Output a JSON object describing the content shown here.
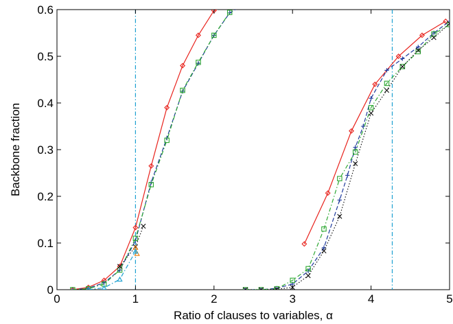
{
  "chart_data": {
    "type": "line",
    "title": "",
    "xlabel": "Ratio of clauses to variables, α",
    "ylabel": "Backbone fraction",
    "xlim": [
      0,
      5
    ],
    "ylim": [
      0,
      0.6
    ],
    "xticks": [
      0,
      1,
      2,
      3,
      4,
      5
    ],
    "yticks": [
      0,
      0.1,
      0.2,
      0.3,
      0.4,
      0.5,
      0.6
    ],
    "xtick_labels": [
      "0",
      "1",
      "2",
      "3",
      "4",
      "5"
    ],
    "ytick_labels": [
      "0",
      "0.1",
      "0.2",
      "0.3",
      "0.4",
      "0.5",
      "0.6"
    ],
    "grid": false,
    "vlines": [
      {
        "x": 1.0,
        "color": "#1a9fd0",
        "style": "dashdot"
      },
      {
        "x": 4.27,
        "color": "#1a9fd0",
        "style": "dashdot"
      }
    ],
    "series": [
      {
        "color": "#e8221c",
        "style": "solid",
        "marker": "diamond",
        "x": [
          0.2,
          0.4,
          0.6,
          0.8,
          1.0,
          1.2,
          1.4,
          1.6,
          1.8,
          2.0,
          2.2,
          2.4
        ],
        "y": [
          0.0,
          0.005,
          0.02,
          0.05,
          0.133,
          0.265,
          0.39,
          0.48,
          0.545,
          0.598,
          0.61,
          0.615
        ]
      },
      {
        "color": "#1f3a9c",
        "style": "dashed",
        "marker": "plus",
        "x": [
          0.2,
          0.4,
          0.6,
          0.8,
          1.0,
          1.2,
          1.4,
          1.6,
          1.8,
          2.0,
          2.2,
          2.4
        ],
        "y": [
          0.0,
          0.003,
          0.015,
          0.042,
          0.105,
          0.23,
          0.325,
          0.425,
          0.485,
          0.545,
          0.593,
          0.612
        ]
      },
      {
        "color": "#2da832",
        "style": "dashdot",
        "marker": "square",
        "x": [
          0.2,
          0.4,
          0.6,
          0.8,
          1.0,
          1.2,
          1.4,
          1.6,
          1.8,
          2.0,
          2.2
        ],
        "y": [
          0.0,
          0.002,
          0.012,
          0.042,
          0.11,
          0.225,
          0.32,
          0.427,
          0.487,
          0.545,
          0.594
        ]
      },
      {
        "color": "#111111",
        "style": "dotted",
        "marker": "x",
        "x": [
          0.8,
          1.0,
          1.1
        ],
        "y": [
          0.05,
          0.092,
          0.136
        ]
      },
      {
        "color": "#f07f0c",
        "style": "dashdot",
        "marker": "triangle",
        "x": [
          1.0,
          1.02
        ],
        "y": [
          0.09,
          0.077
        ]
      },
      {
        "color": "#1a9fd0",
        "style": "dashdot",
        "marker": "triangle",
        "x": [
          0.4,
          0.6,
          0.8,
          1.0
        ],
        "y": [
          0.0,
          0.004,
          0.022,
          0.082
        ]
      },
      {
        "color": "#e8221c",
        "style": "solid",
        "marker": "diamond",
        "x": [
          3.15,
          3.45,
          3.75,
          4.05,
          4.35,
          4.65,
          4.95
        ],
        "y": [
          0.098,
          0.207,
          0.34,
          0.44,
          0.5,
          0.545,
          0.575
        ]
      },
      {
        "color": "#1f3a9c",
        "style": "dashed",
        "marker": "plus",
        "x": [
          2.4,
          2.6,
          2.8,
          3.0,
          3.2,
          3.4,
          3.6,
          3.7,
          3.8,
          3.9,
          4.0,
          4.2,
          4.4,
          4.6,
          4.8,
          5.0
        ],
        "y": [
          0.0,
          0.0,
          0.003,
          0.012,
          0.04,
          0.09,
          0.192,
          0.245,
          0.305,
          0.35,
          0.41,
          0.47,
          0.495,
          0.52,
          0.55,
          0.575
        ]
      },
      {
        "color": "#2da832",
        "style": "dashdot",
        "marker": "square",
        "x": [
          2.4,
          2.6,
          2.8,
          3.0,
          3.2,
          3.4,
          3.6,
          3.8,
          4.0,
          4.2,
          4.4,
          4.6,
          4.8,
          5.0
        ],
        "y": [
          0.0,
          0.0,
          0.002,
          0.02,
          0.045,
          0.13,
          0.238,
          0.295,
          0.39,
          0.442,
          0.478,
          0.51,
          0.548,
          0.568
        ]
      },
      {
        "color": "#111111",
        "style": "dotted",
        "marker": "x",
        "x": [
          2.4,
          2.6,
          2.8,
          3.0,
          3.2,
          3.4,
          3.6,
          3.8,
          4.0,
          4.2,
          4.4,
          4.6,
          4.8,
          5.0
        ],
        "y": [
          0.0,
          0.0,
          0.001,
          0.005,
          0.03,
          0.083,
          0.157,
          0.27,
          0.378,
          0.427,
          0.478,
          0.513,
          0.54,
          0.57
        ]
      }
    ]
  }
}
